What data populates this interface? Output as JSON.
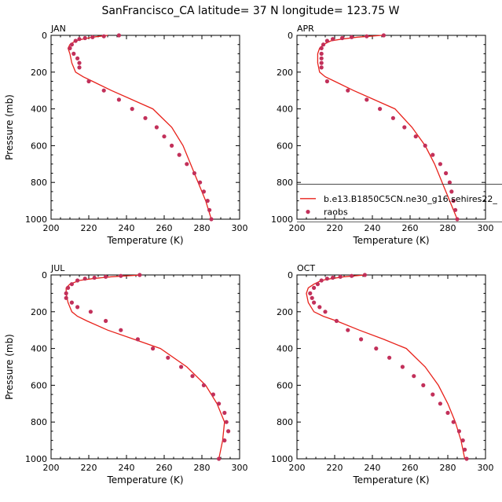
{
  "figure": {
    "title": "SanFrancisco_CA  latitude= 37 N longitude= 123.75 W",
    "xlabel": "Temperature (K)",
    "ylabel": "Pressure (mb)",
    "xticks": [
      "200",
      "220",
      "240",
      "260",
      "280",
      "300"
    ],
    "yticks": [
      "0",
      "200",
      "400",
      "600",
      "800",
      "1000"
    ],
    "legend": {
      "model_label": "b.e13.B1850C5CN.ne30_g16.sehires22_",
      "obs_label": "raobs"
    }
  },
  "colors": {
    "model_line": "#e8221b",
    "obs_marker": "#c2305a",
    "axes": "#000000",
    "background": "#ffffff"
  },
  "chart_data": [
    {
      "type": "line",
      "panel": "JAN",
      "xlim": [
        200,
        300
      ],
      "ylim": [
        1000,
        0
      ],
      "yscale": "linear, inverted",
      "series": [
        {
          "name": "b.e13.B1850C5CN.ne30_g16.sehires22_",
          "style": "line",
          "x": [
            230,
            222,
            217,
            213,
            210,
            209,
            210,
            211,
            213,
            217,
            222,
            232,
            243,
            254,
            264,
            270,
            274,
            278,
            282,
            285
          ],
          "y": [
            0,
            10,
            20,
            30,
            50,
            70,
            100,
            150,
            200,
            225,
            250,
            300,
            350,
            400,
            500,
            600,
            700,
            800,
            900,
            1000
          ]
        },
        {
          "name": "raobs",
          "style": "markers",
          "x": [
            236,
            228,
            222,
            218,
            215,
            213,
            211,
            210,
            212,
            214,
            215,
            215,
            220,
            228,
            236,
            243,
            250,
            256,
            260,
            264,
            268,
            272,
            276,
            279,
            281,
            283,
            284,
            285
          ],
          "y": [
            0,
            5,
            10,
            15,
            20,
            30,
            50,
            70,
            100,
            125,
            150,
            175,
            250,
            300,
            350,
            400,
            450,
            500,
            550,
            600,
            650,
            700,
            750,
            800,
            850,
            900,
            950,
            1000
          ]
        }
      ]
    },
    {
      "type": "line",
      "panel": "APR",
      "xlim": [
        200,
        300
      ],
      "ylim": [
        1000,
        0
      ],
      "yscale": "linear, inverted",
      "series": [
        {
          "name": "b.e13.B1850C5CN.ne30_g16.sehires22_",
          "style": "line",
          "x": [
            245,
            232,
            224,
            218,
            214,
            212,
            211,
            211,
            212,
            215,
            220,
            230,
            241,
            252,
            261,
            268,
            273,
            277,
            281,
            285
          ],
          "y": [
            0,
            10,
            20,
            30,
            50,
            70,
            100,
            150,
            200,
            225,
            250,
            300,
            350,
            400,
            500,
            600,
            700,
            800,
            900,
            1000
          ]
        },
        {
          "name": "raobs",
          "style": "markers",
          "x": [
            246,
            237,
            229,
            224,
            219,
            216,
            214,
            213,
            213,
            213,
            213,
            213,
            216,
            227,
            237,
            244,
            251,
            257,
            263,
            268,
            272,
            276,
            279,
            281,
            282,
            283,
            284,
            285
          ],
          "y": [
            0,
            5,
            10,
            15,
            20,
            30,
            50,
            70,
            100,
            125,
            150,
            175,
            250,
            300,
            350,
            400,
            450,
            500,
            550,
            600,
            650,
            700,
            750,
            800,
            850,
            900,
            950,
            1000
          ]
        }
      ]
    },
    {
      "type": "line",
      "panel": "JUL",
      "xlim": [
        200,
        300
      ],
      "ylim": [
        1000,
        0
      ],
      "yscale": "linear, inverted",
      "series": [
        {
          "name": "b.e13.B1850C5CN.ne30_g16.sehires22_",
          "style": "line",
          "x": [
            248,
            232,
            222,
            215,
            210,
            208,
            208,
            209,
            211,
            214,
            219,
            230,
            244,
            258,
            272,
            282,
            288,
            292,
            291,
            289
          ],
          "y": [
            0,
            10,
            20,
            30,
            50,
            70,
            100,
            150,
            200,
            225,
            250,
            300,
            350,
            400,
            500,
            600,
            700,
            800,
            900,
            1000
          ]
        },
        {
          "name": "raobs",
          "style": "markers",
          "x": [
            247,
            237,
            229,
            223,
            218,
            214,
            211,
            209,
            208,
            208,
            211,
            214,
            221,
            229,
            237,
            246,
            254,
            262,
            269,
            275,
            281,
            286,
            289,
            292,
            293,
            294,
            292,
            289
          ],
          "y": [
            0,
            5,
            10,
            15,
            20,
            30,
            50,
            70,
            100,
            125,
            150,
            175,
            200,
            250,
            300,
            350,
            400,
            450,
            500,
            550,
            600,
            650,
            700,
            750,
            800,
            850,
            900,
            1000
          ]
        }
      ]
    },
    {
      "type": "line",
      "panel": "OCT",
      "xlim": [
        200,
        300
      ],
      "ylim": [
        1000,
        0
      ],
      "yscale": "linear, inverted",
      "series": [
        {
          "name": "b.e13.B1850C5CN.ne30_g16.sehires22_",
          "style": "line",
          "x": [
            236,
            225,
            218,
            213,
            209,
            206,
            205,
            206,
            209,
            214,
            221,
            233,
            246,
            258,
            268,
            275,
            280,
            284,
            287,
            289
          ],
          "y": [
            0,
            10,
            20,
            30,
            50,
            70,
            100,
            150,
            200,
            225,
            250,
            300,
            350,
            400,
            500,
            600,
            700,
            800,
            900,
            1000
          ]
        },
        {
          "name": "raobs",
          "style": "markers",
          "x": [
            236,
            229,
            223,
            219,
            216,
            213,
            211,
            209,
            207,
            208,
            209,
            212,
            215,
            221,
            227,
            234,
            242,
            249,
            256,
            262,
            267,
            272,
            276,
            280,
            283,
            286,
            288,
            289,
            290
          ],
          "y": [
            0,
            5,
            10,
            15,
            20,
            30,
            50,
            70,
            100,
            125,
            150,
            175,
            200,
            250,
            300,
            350,
            400,
            450,
            500,
            550,
            600,
            650,
            700,
            750,
            800,
            850,
            900,
            950,
            1000
          ]
        }
      ]
    }
  ]
}
